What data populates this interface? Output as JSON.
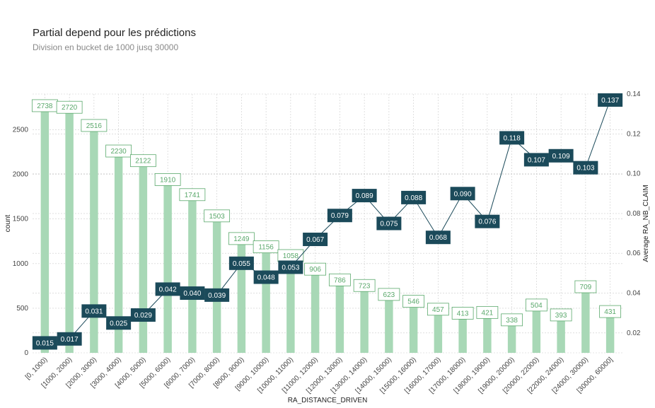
{
  "header": {
    "title": "Partial depend pour les prédictions",
    "subtitle": "Division en bucket de 1000 jusq 30000"
  },
  "colors": {
    "bar": "#a8d8b6",
    "bar_label_border": "#5aa86b",
    "line": "#1b4a5a",
    "grid": "#cccccc"
  },
  "chart_data": {
    "type": "bar+line",
    "xlabel": "RA_DISTANCE_DRIVEN",
    "ylabel": "count",
    "y2label": "Average RA_NB_CLAIM",
    "ylim": [
      0,
      2900
    ],
    "y2lim": [
      0.01,
      0.14
    ],
    "yticks": [
      0,
      500,
      1000,
      1500,
      2000,
      2500
    ],
    "y2ticks": [
      0.02,
      0.04,
      0.06,
      0.08,
      0.1,
      0.12,
      0.14
    ],
    "y2tick_labels": [
      "0.02",
      "0.04",
      "0.06",
      "0.08",
      "0.10",
      "0.12",
      "0.14"
    ],
    "grid": true,
    "categories": [
      "[0, 1000)",
      "[1000, 2000)",
      "[2000, 3000)",
      "[3000, 4000)",
      "[4000, 5000)",
      "[5000, 6000)",
      "[6000, 7000)",
      "[7000, 8000)",
      "[8000, 9000)",
      "[9000, 10000)",
      "[10000, 11000)",
      "[11000, 12000)",
      "[12000, 13000)",
      "[13000, 14000)",
      "[14000, 15000)",
      "[15000, 16000)",
      "[16000, 17000)",
      "[17000, 18000)",
      "[18000, 19000)",
      "[19000, 20000)",
      "[20000, 22000)",
      "[22000, 24000)",
      "[24000, 30000)",
      "[30000, 60000]"
    ],
    "series": [
      {
        "kind": "bar",
        "axis": "left",
        "values": [
          2738,
          2720,
          2516,
          2230,
          2122,
          1910,
          1741,
          1503,
          1249,
          1156,
          1058,
          906,
          786,
          723,
          623,
          546,
          457,
          413,
          421,
          338,
          504,
          393,
          709,
          431
        ]
      },
      {
        "kind": "line",
        "axis": "right",
        "values": [
          0.015,
          0.017,
          0.031,
          0.025,
          0.029,
          0.042,
          0.04,
          0.039,
          0.055,
          0.048,
          0.053,
          0.067,
          0.079,
          0.089,
          0.075,
          0.088,
          0.068,
          0.09,
          0.076,
          0.118,
          0.107,
          0.109,
          0.103,
          0.137
        ],
        "labels": [
          "0.015",
          "0.017",
          "0.031",
          "0.025",
          "0.029",
          "0.042",
          "0.040",
          "0.039",
          "0.055",
          "0.048",
          "0.053",
          "0.067",
          "0.079",
          "0.089",
          "0.075",
          "0.088",
          "0.068",
          "0.090",
          "0.076",
          "0.118",
          "0.107",
          "0.109",
          "0.103",
          "0.137"
        ]
      }
    ]
  }
}
